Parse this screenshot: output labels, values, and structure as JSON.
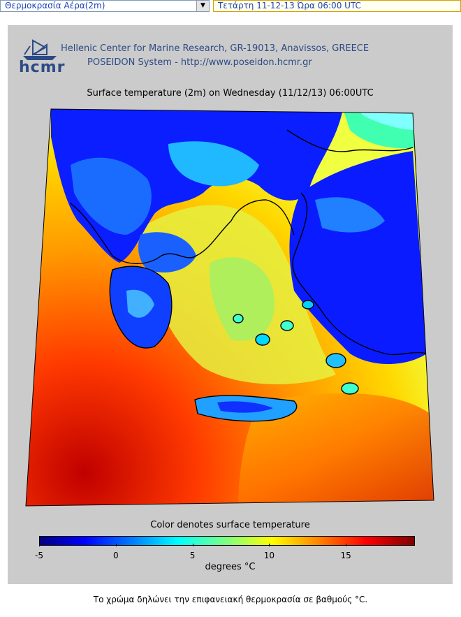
{
  "controls": {
    "parameter_select": "Θερμοκρασία Αέρα(2m)",
    "datetime_field": "Τετάρτη 11-12-13 Ώρα 06:00 UTC"
  },
  "header": {
    "logo_text": "hcmr",
    "line1": "Hellenic Center for Marine Research, GR-19013, Anavissos, GREECE",
    "line2": "POSEIDON System - http://www.poseidon.hcmr.gr"
  },
  "map": {
    "title": "Surface temperature (2m) on Wednesday (11/12/13) 06:00UTC",
    "colorbar_title": "Color denotes surface temperature",
    "colorbar_units": "degrees °C",
    "colorbar_ticks": [
      "-5",
      "0",
      "5",
      "10",
      "15"
    ],
    "colorbar_range": [
      -5,
      19.5
    ],
    "colors": {
      "cold": "#0000ff",
      "cool": "#00ffff",
      "mild": "#ffff00",
      "warm": "#ff8000",
      "hot": "#ff0000"
    }
  },
  "caption": "Το χρώμα δηλώνει την επιφανειακή θερμοκρασία σε βαθμούς °C."
}
